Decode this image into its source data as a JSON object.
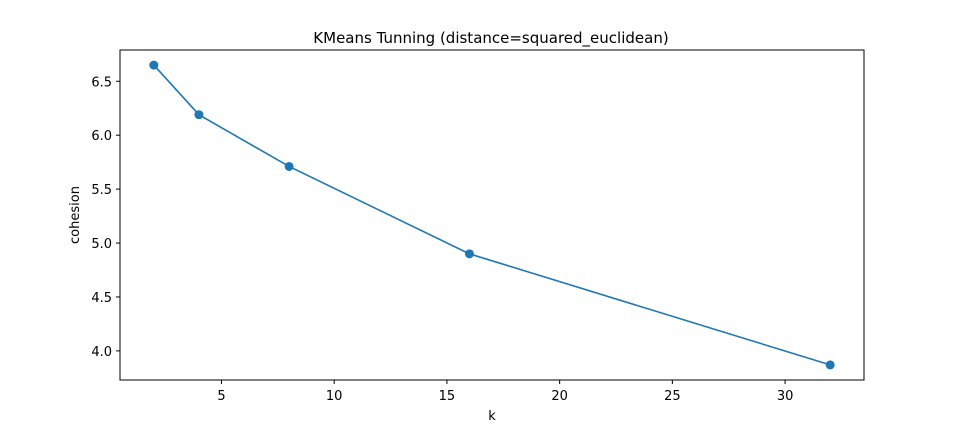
{
  "chart_data": {
    "type": "line",
    "title": "KMeans Tunning (distance=squared_euclidean)",
    "xlabel": "k",
    "ylabel": "cohesion",
    "x": [
      2,
      4,
      8,
      16,
      32
    ],
    "series": [
      {
        "values": [
          6.65,
          6.19,
          5.71,
          4.9,
          3.87
        ],
        "color": "#1f77b4",
        "marker": "circle"
      }
    ],
    "xlim": [
      0.5,
      33.5
    ],
    "ylim": [
      3.73,
      6.79
    ],
    "xticks": [
      5,
      10,
      15,
      20,
      25,
      30
    ],
    "xtick_labels": [
      "5",
      "10",
      "15",
      "20",
      "25",
      "30"
    ],
    "yticks": [
      4.0,
      4.5,
      5.0,
      5.5,
      6.0,
      6.5
    ],
    "ytick_labels": [
      "4.0",
      "4.5",
      "5.0",
      "5.5",
      "6.0",
      "6.5"
    ],
    "grid": false,
    "legend": "none"
  }
}
